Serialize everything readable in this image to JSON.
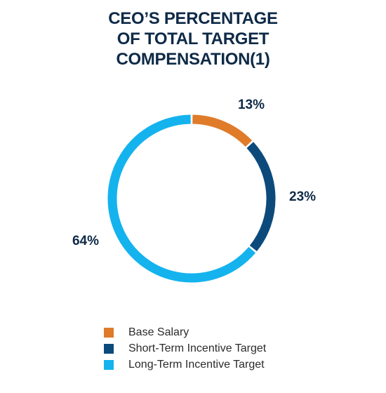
{
  "chart_data": {
    "type": "pie",
    "variant": "donut",
    "title_lines": [
      "CEO’S PERCENTAGE",
      "OF TOTAL TARGET",
      "COMPENSATION(1)"
    ],
    "series": [
      {
        "name": "Base Salary",
        "value": 13,
        "label": "13%",
        "color": "#e07b2a"
      },
      {
        "name": "Short-Term Incentive Target",
        "value": 23,
        "label": "23%",
        "color": "#0d4a7c"
      },
      {
        "name": "Long-Term Incentive Target",
        "value": 64,
        "label": "64%",
        "color": "#14b3ee"
      }
    ],
    "legend_position": "bottom"
  }
}
